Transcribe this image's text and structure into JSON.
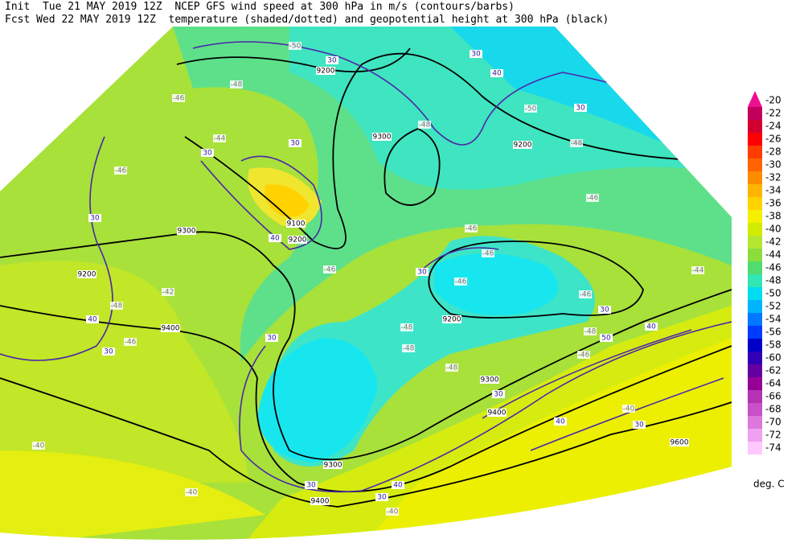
{
  "header": {
    "line1": "Init  Tue 21 MAY 2019 12Z  NCEP GFS wind speed at 300 hPa in m/s (contours/barbs)",
    "line2": "Fcst Wed 22 MAY 2019 12Z  temperature (shaded/dotted) and geopotential height at 300 hPa (black)"
  },
  "colorbar": {
    "levels": [
      -20,
      -22,
      -24,
      -26,
      -28,
      -30,
      -32,
      -34,
      -36,
      -38,
      -40,
      -42,
      -44,
      -46,
      -48,
      -50,
      -52,
      -54,
      -56,
      -58,
      -60,
      -62,
      -64,
      -66,
      -68,
      -70,
      -72,
      -74
    ],
    "colors": [
      "#ee1090",
      "#c0005c",
      "#d20030",
      "#ff0000",
      "#ff3c00",
      "#ff6400",
      "#ff8c00",
      "#ffb400",
      "#ffd200",
      "#f5f000",
      "#d2ec00",
      "#b4e632",
      "#8cdc3c",
      "#50dc6e",
      "#32e6b4",
      "#00dcf0",
      "#00b4ff",
      "#0078ff",
      "#003cff",
      "#0000c8",
      "#3200b4",
      "#6400a0",
      "#960096",
      "#b432b4",
      "#c850c8",
      "#dc78dc",
      "#f0a0f0",
      "#ffc8ff"
    ],
    "unit": "deg. C"
  },
  "map": {
    "height_labels": [
      9200,
      9300,
      9200,
      9100,
      9200,
      9300,
      9200,
      9400,
      9200,
      9300,
      9400,
      9300,
      9400,
      9600
    ],
    "wind_labels": [
      30,
      30,
      40,
      30,
      30,
      30,
      30,
      40,
      30,
      40,
      30,
      30,
      30,
      40,
      50,
      30,
      40,
      30,
      30,
      40,
      30
    ],
    "temp_labels": [
      -50,
      -48,
      -46,
      -44,
      -46,
      -48,
      -48,
      -50,
      -46,
      -46,
      -46,
      -46,
      -46,
      -44,
      -42,
      -48,
      -46,
      -48,
      -46,
      -48,
      -48,
      -48,
      -46,
      -40,
      -40,
      -40,
      -40
    ]
  }
}
